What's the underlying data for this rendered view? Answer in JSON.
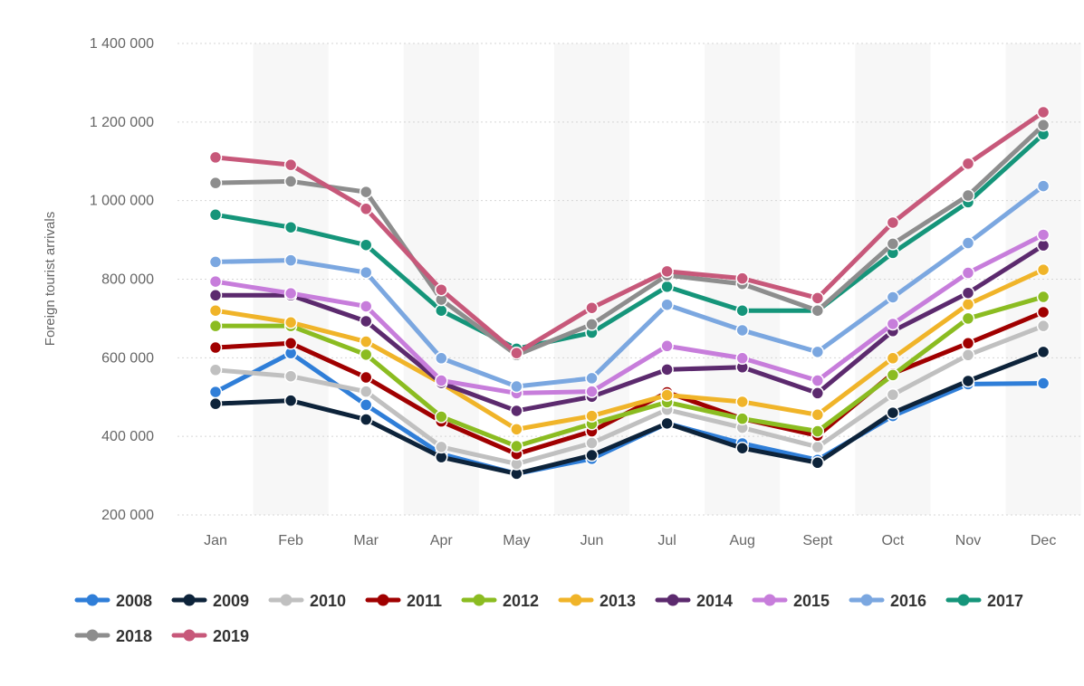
{
  "chart_data": {
    "type": "line",
    "title": "",
    "xlabel": "",
    "ylabel": "Foreign tourist arrivals",
    "ylim": [
      200000,
      1400000
    ],
    "yticks": [
      200000,
      400000,
      600000,
      800000,
      1000000,
      1200000,
      1400000
    ],
    "ytick_labels": [
      "200 000",
      "400 000",
      "600 000",
      "800 000",
      "1 000 000",
      "1 200 000",
      "1 400 000"
    ],
    "categories": [
      "Jan",
      "Feb",
      "Mar",
      "Apr",
      "May",
      "Jun",
      "Jul",
      "Aug",
      "Sept",
      "Oct",
      "Nov",
      "Dec"
    ],
    "grid": true,
    "alternating_bands": true,
    "legend_position": "bottom-left",
    "series": [
      {
        "name": "2008",
        "color": "#2f7ed8",
        "values": [
          513000,
          612000,
          480000,
          355000,
          305000,
          343000,
          433000,
          382000,
          340000,
          452000,
          533000,
          535000
        ]
      },
      {
        "name": "2009",
        "color": "#0d233a",
        "values": [
          483000,
          491000,
          443000,
          347000,
          305000,
          352000,
          433000,
          370000,
          333000,
          460000,
          541000,
          615000
        ]
      },
      {
        "name": "2010",
        "color": "#c0c0c0",
        "values": [
          569000,
          553000,
          514000,
          373000,
          330000,
          383000,
          468000,
          422000,
          373000,
          506000,
          607000,
          681000
        ]
      },
      {
        "name": "2011",
        "color": "#a00000",
        "values": [
          626000,
          637000,
          550000,
          438000,
          355000,
          413000,
          512000,
          445000,
          402000,
          560000,
          637000,
          716000
        ]
      },
      {
        "name": "2012",
        "color": "#8bbc21",
        "values": [
          681000,
          681000,
          608000,
          450000,
          375000,
          432000,
          487000,
          445000,
          413000,
          556000,
          700000,
          755000
        ]
      },
      {
        "name": "2013",
        "color": "#f0b429",
        "values": [
          720000,
          690000,
          641000,
          535000,
          418000,
          452000,
          505000,
          488000,
          455000,
          599000,
          736000,
          824000
        ]
      },
      {
        "name": "2014",
        "color": "#5c2a6e",
        "values": [
          759000,
          759000,
          693000,
          536000,
          465000,
          501000,
          570000,
          576000,
          510000,
          668000,
          765000,
          886000
        ]
      },
      {
        "name": "2015",
        "color": "#c77ddb",
        "values": [
          794000,
          764000,
          731000,
          542000,
          510000,
          514000,
          630000,
          599000,
          542000,
          686000,
          816000,
          913000
        ]
      },
      {
        "name": "2016",
        "color": "#7ba7e0",
        "values": [
          844000,
          848000,
          817000,
          599000,
          527000,
          548000,
          735000,
          670000,
          615000,
          754000,
          892000,
          1037000
        ]
      },
      {
        "name": "2017",
        "color": "#15957a",
        "values": [
          964000,
          932000,
          887000,
          720000,
          623000,
          664000,
          781000,
          720000,
          720000,
          867000,
          996000,
          1169000
        ]
      },
      {
        "name": "2018",
        "color": "#8d8d8d",
        "values": [
          1045000,
          1049000,
          1022000,
          748000,
          607000,
          685000,
          810000,
          788000,
          720000,
          890000,
          1013000,
          1192000
        ]
      },
      {
        "name": "2019",
        "color": "#c7587a",
        "values": [
          1110000,
          1091000,
          979000,
          773000,
          612000,
          727000,
          820000,
          802000,
          752000,
          944000,
          1094000,
          1225000
        ]
      }
    ]
  }
}
